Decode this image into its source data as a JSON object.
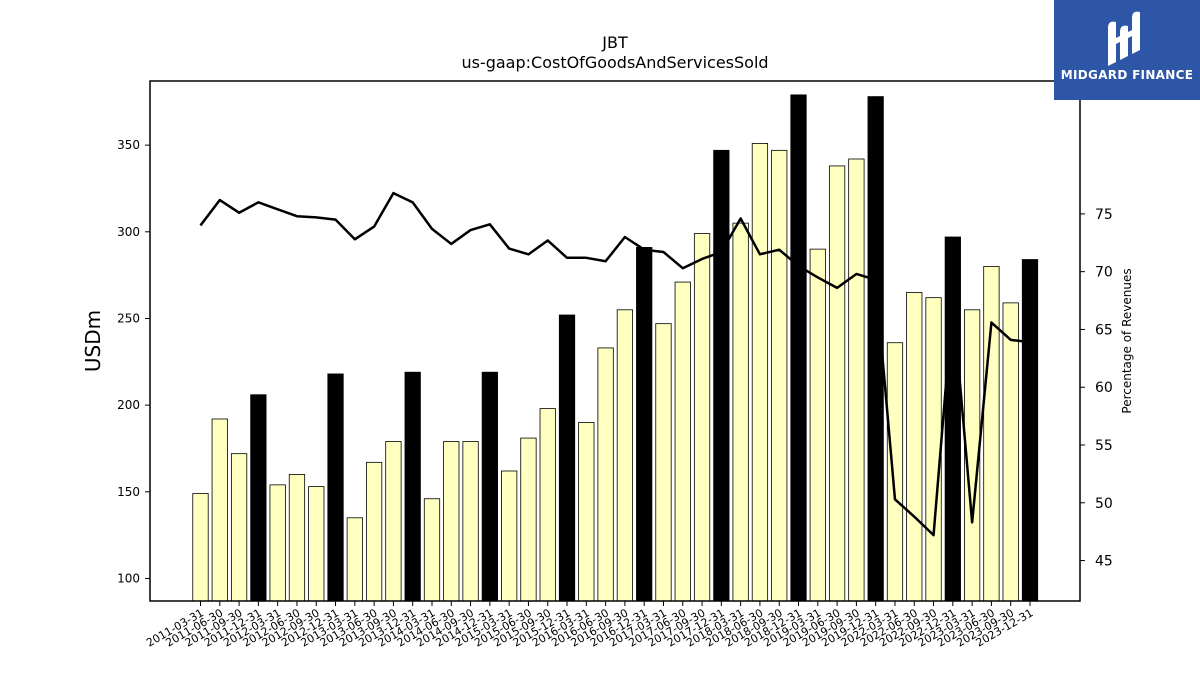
{
  "chart_data": {
    "type": "bar",
    "title": "JBT",
    "subtitle": "us-gaap:CostOfGoodsAndServicesSold",
    "ylabel": "USDm",
    "y2label": "Percentage of Revenues",
    "ylim": [
      87,
      387
    ],
    "y2lim": [
      41.5,
      86.5
    ],
    "yticks": [
      100,
      150,
      200,
      250,
      300,
      350
    ],
    "y2ticks": [
      45,
      50,
      55,
      60,
      65,
      70,
      75
    ],
    "categories": [
      "2011-03-31",
      "2011-06-30",
      "2011-09-30",
      "2011-12-31",
      "2012-03-31",
      "2012-06-30",
      "2012-09-30",
      "2012-12-31",
      "2013-03-31",
      "2013-06-30",
      "2013-09-30",
      "2013-12-31",
      "2014-03-31",
      "2014-06-30",
      "2014-09-30",
      "2014-12-31",
      "2015-03-31",
      "2015-06-30",
      "2015-09-30",
      "2015-12-31",
      "2016-03-31",
      "2016-06-30",
      "2016-09-30",
      "2016-12-31",
      "2017-03-31",
      "2017-06-30",
      "2017-09-30",
      "2017-12-31",
      "2018-03-31",
      "2018-06-30",
      "2018-09-30",
      "2018-12-31",
      "2019-03-31",
      "2019-06-30",
      "2019-09-30",
      "2019-12-31",
      "2022-03-31",
      "2022-06-30",
      "2022-09-30",
      "2022-12-31",
      "2023-03-31",
      "2023-06-30",
      "2023-09-30",
      "2023-12-31"
    ],
    "series": [
      {
        "type": "bar",
        "values": [
          149,
          192,
          172,
          206,
          154,
          160,
          153,
          218,
          135,
          167,
          179,
          219,
          146,
          179,
          179,
          219,
          162,
          181,
          198,
          252,
          190,
          233,
          255,
          291,
          247,
          271,
          299,
          347,
          305,
          351,
          347,
          379,
          290,
          338,
          342,
          378,
          236,
          265,
          262,
          297,
          255,
          280,
          259,
          284
        ],
        "annual": [
          false,
          false,
          false,
          true,
          false,
          false,
          false,
          true,
          false,
          false,
          false,
          true,
          false,
          false,
          false,
          true,
          false,
          false,
          false,
          true,
          false,
          false,
          false,
          true,
          false,
          false,
          false,
          true,
          false,
          false,
          false,
          true,
          false,
          false,
          false,
          true,
          false,
          false,
          false,
          true,
          false,
          false,
          false,
          true
        ],
        "colors": {
          "quarter_fill": "#ffffc0",
          "annual_fill": "#000000",
          "edge": "#000000"
        }
      },
      {
        "type": "line",
        "axis": "right",
        "values": [
          74.0,
          76.2,
          75.1,
          76.0,
          75.4,
          74.8,
          74.7,
          74.5,
          72.8,
          73.9,
          76.8,
          76.0,
          73.7,
          72.4,
          73.6,
          74.1,
          72.0,
          71.5,
          72.7,
          71.2,
          71.2,
          70.9,
          73.0,
          71.9,
          71.7,
          70.3,
          71.1,
          71.7,
          74.6,
          71.5,
          71.9,
          70.5,
          69.5,
          68.6,
          69.8,
          69.3,
          50.3,
          48.8,
          47.2,
          67.4,
          48.3,
          65.6,
          64.1,
          63.9
        ],
        "color": "#000000"
      }
    ]
  },
  "logo": {
    "text": "MIDGARD FINANCE",
    "bg": "#2d56a6",
    "fg": "#ffffff"
  }
}
